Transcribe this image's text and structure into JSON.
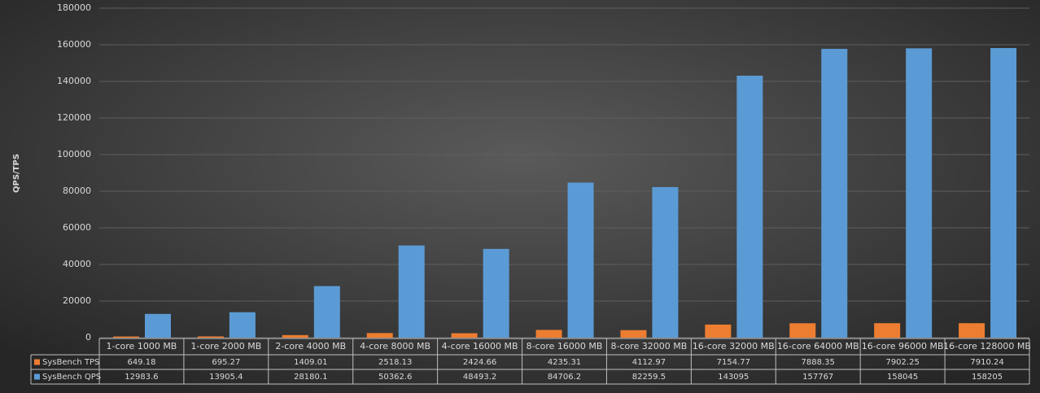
{
  "chart_data": {
    "type": "bar",
    "y_label": "QPS/TPS",
    "categories": [
      "1-core 1000 MB",
      "1-core 2000 MB",
      "2-core 4000 MB",
      "4-core 8000 MB",
      "4-core 16000 MB",
      "8-core 16000 MB",
      "8-core 32000 MB",
      "16-core 32000 MB",
      "16-core 64000 MB",
      "16-core 96000 MB",
      "16-core 128000 MB"
    ],
    "series": [
      {
        "name": "SysBench TPS",
        "color": "#ed7d31",
        "values": [
          649.18,
          695.27,
          1409.01,
          2518.13,
          2424.66,
          4235.31,
          4112.97,
          7154.77,
          7888.35,
          7902.25,
          7910.24
        ]
      },
      {
        "name": "SysBench QPS",
        "color": "#5b9bd5",
        "values": [
          12983.6,
          13905.4,
          28180.1,
          50362.6,
          48493.2,
          84706.2,
          82259.5,
          143095,
          157767,
          158045,
          158205
        ]
      }
    ],
    "ylim": [
      0,
      180000
    ],
    "yticks": [
      0,
      20000,
      40000,
      60000,
      80000,
      100000,
      120000,
      140000,
      160000,
      180000
    ],
    "grid": true
  }
}
